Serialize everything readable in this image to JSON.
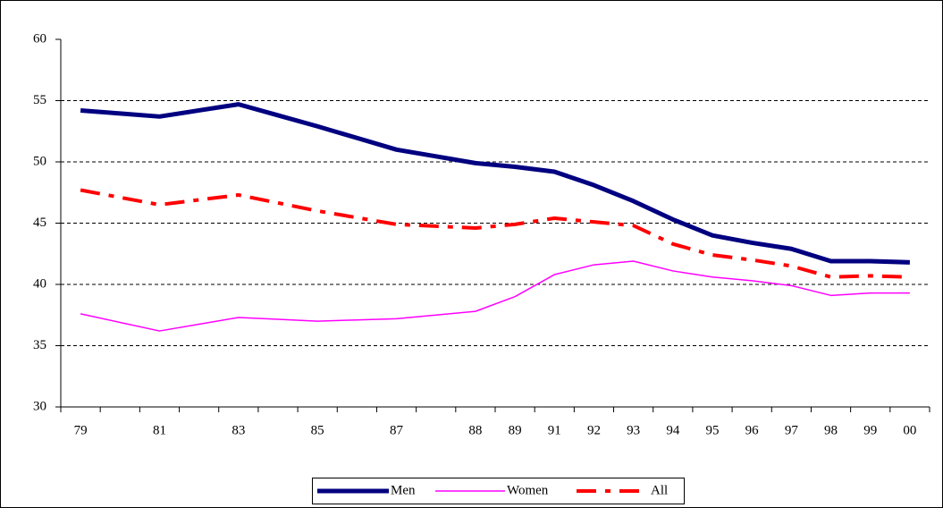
{
  "chart_data": {
    "type": "line",
    "categories": [
      "79",
      null,
      "81",
      null,
      "83",
      null,
      "85",
      null,
      "87",
      null,
      "88",
      "89",
      "91",
      "92",
      "93",
      "94",
      "95",
      "96",
      "97",
      "98",
      "99",
      "00"
    ],
    "series": [
      {
        "name": "Men",
        "color": "#000080",
        "values": [
          54.2,
          53.95,
          53.7,
          54.2,
          54.7,
          53.8,
          52.9,
          51.95,
          51.0,
          50.45,
          49.9,
          49.6,
          49.2,
          48.1,
          46.8,
          45.3,
          44.0,
          43.4,
          42.9,
          41.9,
          41.9,
          41.8
        ]
      },
      {
        "name": "Women",
        "color": "#ff00ff",
        "values": [
          37.6,
          36.9,
          36.2,
          36.75,
          37.3,
          37.15,
          37.0,
          37.1,
          37.2,
          37.5,
          37.8,
          39.0,
          40.8,
          41.6,
          41.9,
          41.1,
          40.6,
          40.3,
          39.9,
          39.1,
          39.3,
          39.3
        ]
      },
      {
        "name": "All",
        "color": "#ff0000",
        "values": [
          47.7,
          47.1,
          46.5,
          46.9,
          47.3,
          46.65,
          46.0,
          45.45,
          44.9,
          44.75,
          44.6,
          44.9,
          45.4,
          45.1,
          44.8,
          43.3,
          42.4,
          42.0,
          41.5,
          40.6,
          40.7,
          40.6
        ]
      }
    ],
    "ylim": [
      30,
      60
    ],
    "yticks": [
      30,
      35,
      40,
      45,
      50,
      55,
      60
    ],
    "grid": true,
    "legend": "bottom"
  }
}
